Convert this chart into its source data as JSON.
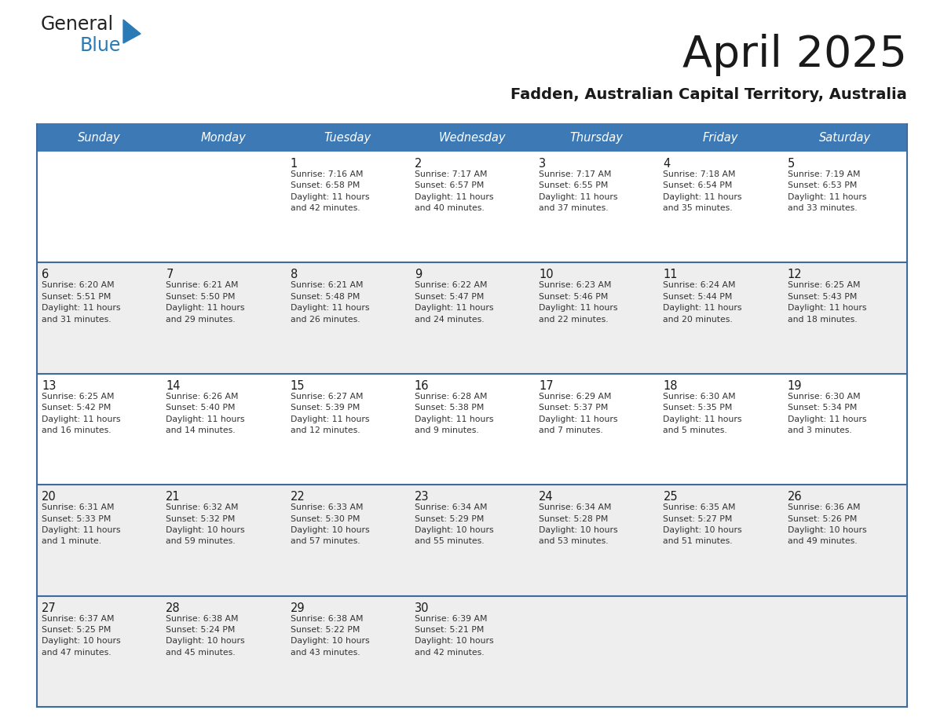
{
  "title": "April 2025",
  "subtitle": "Fadden, Australian Capital Territory, Australia",
  "header_bg_color": "#3d7ab5",
  "header_text_color": "#ffffff",
  "title_color": "#1a1a1a",
  "subtitle_color": "#1a1a1a",
  "cell_bg_white": "#ffffff",
  "cell_bg_gray": "#eeeeee",
  "cell_text_color": "#333333",
  "day_number_color": "#1a1a1a",
  "separator_color": "#3d6b9e",
  "days_of_week": [
    "Sunday",
    "Monday",
    "Tuesday",
    "Wednesday",
    "Thursday",
    "Friday",
    "Saturday"
  ],
  "week_bg": [
    "#ffffff",
    "#eeeeee",
    "#ffffff",
    "#eeeeee",
    "#eeeeee"
  ],
  "weeks": [
    [
      {
        "day": "",
        "text": ""
      },
      {
        "day": "",
        "text": ""
      },
      {
        "day": "1",
        "text": "Sunrise: 7:16 AM\nSunset: 6:58 PM\nDaylight: 11 hours\nand 42 minutes."
      },
      {
        "day": "2",
        "text": "Sunrise: 7:17 AM\nSunset: 6:57 PM\nDaylight: 11 hours\nand 40 minutes."
      },
      {
        "day": "3",
        "text": "Sunrise: 7:17 AM\nSunset: 6:55 PM\nDaylight: 11 hours\nand 37 minutes."
      },
      {
        "day": "4",
        "text": "Sunrise: 7:18 AM\nSunset: 6:54 PM\nDaylight: 11 hours\nand 35 minutes."
      },
      {
        "day": "5",
        "text": "Sunrise: 7:19 AM\nSunset: 6:53 PM\nDaylight: 11 hours\nand 33 minutes."
      }
    ],
    [
      {
        "day": "6",
        "text": "Sunrise: 6:20 AM\nSunset: 5:51 PM\nDaylight: 11 hours\nand 31 minutes."
      },
      {
        "day": "7",
        "text": "Sunrise: 6:21 AM\nSunset: 5:50 PM\nDaylight: 11 hours\nand 29 minutes."
      },
      {
        "day": "8",
        "text": "Sunrise: 6:21 AM\nSunset: 5:48 PM\nDaylight: 11 hours\nand 26 minutes."
      },
      {
        "day": "9",
        "text": "Sunrise: 6:22 AM\nSunset: 5:47 PM\nDaylight: 11 hours\nand 24 minutes."
      },
      {
        "day": "10",
        "text": "Sunrise: 6:23 AM\nSunset: 5:46 PM\nDaylight: 11 hours\nand 22 minutes."
      },
      {
        "day": "11",
        "text": "Sunrise: 6:24 AM\nSunset: 5:44 PM\nDaylight: 11 hours\nand 20 minutes."
      },
      {
        "day": "12",
        "text": "Sunrise: 6:25 AM\nSunset: 5:43 PM\nDaylight: 11 hours\nand 18 minutes."
      }
    ],
    [
      {
        "day": "13",
        "text": "Sunrise: 6:25 AM\nSunset: 5:42 PM\nDaylight: 11 hours\nand 16 minutes."
      },
      {
        "day": "14",
        "text": "Sunrise: 6:26 AM\nSunset: 5:40 PM\nDaylight: 11 hours\nand 14 minutes."
      },
      {
        "day": "15",
        "text": "Sunrise: 6:27 AM\nSunset: 5:39 PM\nDaylight: 11 hours\nand 12 minutes."
      },
      {
        "day": "16",
        "text": "Sunrise: 6:28 AM\nSunset: 5:38 PM\nDaylight: 11 hours\nand 9 minutes."
      },
      {
        "day": "17",
        "text": "Sunrise: 6:29 AM\nSunset: 5:37 PM\nDaylight: 11 hours\nand 7 minutes."
      },
      {
        "day": "18",
        "text": "Sunrise: 6:30 AM\nSunset: 5:35 PM\nDaylight: 11 hours\nand 5 minutes."
      },
      {
        "day": "19",
        "text": "Sunrise: 6:30 AM\nSunset: 5:34 PM\nDaylight: 11 hours\nand 3 minutes."
      }
    ],
    [
      {
        "day": "20",
        "text": "Sunrise: 6:31 AM\nSunset: 5:33 PM\nDaylight: 11 hours\nand 1 minute."
      },
      {
        "day": "21",
        "text": "Sunrise: 6:32 AM\nSunset: 5:32 PM\nDaylight: 10 hours\nand 59 minutes."
      },
      {
        "day": "22",
        "text": "Sunrise: 6:33 AM\nSunset: 5:30 PM\nDaylight: 10 hours\nand 57 minutes."
      },
      {
        "day": "23",
        "text": "Sunrise: 6:34 AM\nSunset: 5:29 PM\nDaylight: 10 hours\nand 55 minutes."
      },
      {
        "day": "24",
        "text": "Sunrise: 6:34 AM\nSunset: 5:28 PM\nDaylight: 10 hours\nand 53 minutes."
      },
      {
        "day": "25",
        "text": "Sunrise: 6:35 AM\nSunset: 5:27 PM\nDaylight: 10 hours\nand 51 minutes."
      },
      {
        "day": "26",
        "text": "Sunrise: 6:36 AM\nSunset: 5:26 PM\nDaylight: 10 hours\nand 49 minutes."
      }
    ],
    [
      {
        "day": "27",
        "text": "Sunrise: 6:37 AM\nSunset: 5:25 PM\nDaylight: 10 hours\nand 47 minutes."
      },
      {
        "day": "28",
        "text": "Sunrise: 6:38 AM\nSunset: 5:24 PM\nDaylight: 10 hours\nand 45 minutes."
      },
      {
        "day": "29",
        "text": "Sunrise: 6:38 AM\nSunset: 5:22 PM\nDaylight: 10 hours\nand 43 minutes."
      },
      {
        "day": "30",
        "text": "Sunrise: 6:39 AM\nSunset: 5:21 PM\nDaylight: 10 hours\nand 42 minutes."
      },
      {
        "day": "",
        "text": ""
      },
      {
        "day": "",
        "text": ""
      },
      {
        "day": "",
        "text": ""
      }
    ]
  ],
  "logo_text_general": "General",
  "logo_text_blue": "Blue",
  "logo_triangle_color": "#2a7ab5",
  "background_color": "#ffffff"
}
